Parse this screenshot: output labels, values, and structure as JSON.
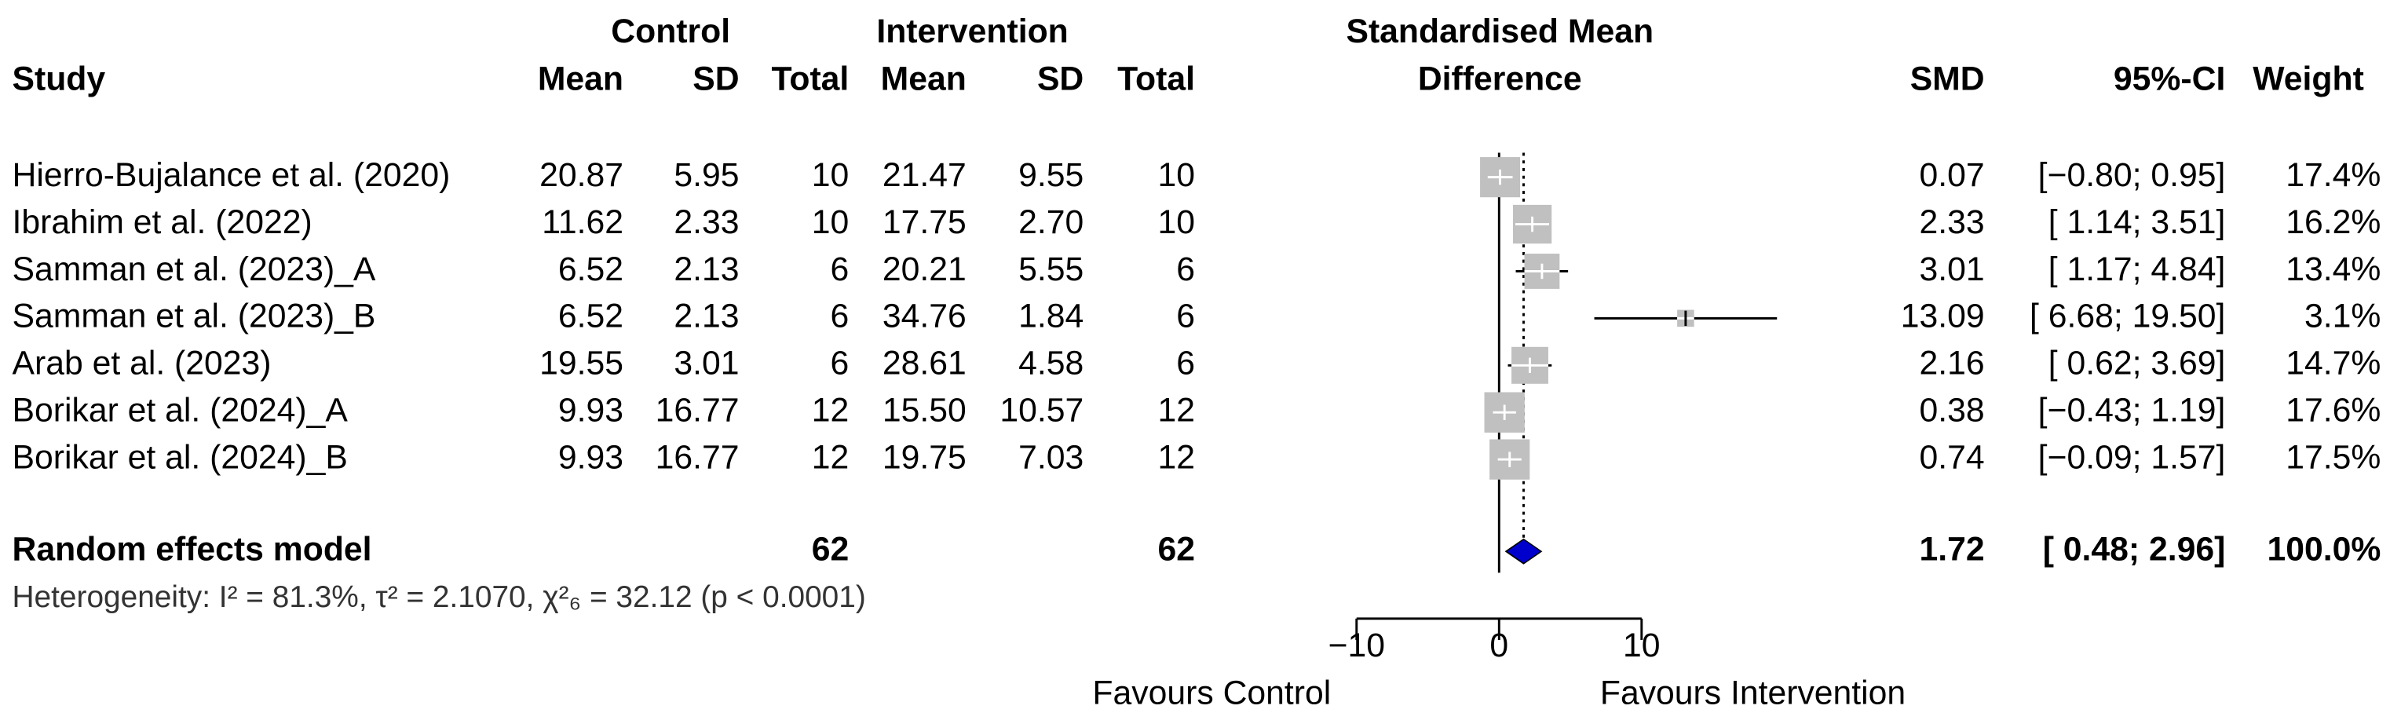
{
  "chart_data": {
    "type": "forest",
    "title_lines": [
      "Standardised Mean",
      "Difference"
    ],
    "columns": {
      "study": "Study",
      "control": "Control",
      "intervention": "Intervention",
      "mean": "Mean",
      "sd": "SD",
      "total": "Total",
      "smd": "SMD",
      "ci": "95%-CI",
      "weight": "Weight"
    },
    "rows": [
      [
        "Hierro-Bujalance et al. (2020)",
        "20.87",
        "5.95",
        "10",
        "21.47",
        "9.55",
        "10"
      ],
      [
        "Ibrahim et al. (2022)",
        "11.62",
        "2.33",
        "10",
        "17.75",
        "2.70",
        "10"
      ],
      [
        "Samman et al. (2023)_A",
        "6.52",
        "2.13",
        "6",
        "20.21",
        "5.55",
        "6"
      ],
      [
        "Samman et al. (2023)_B",
        "6.52",
        "2.13",
        "6",
        "34.76",
        "1.84",
        "6"
      ],
      [
        "Arab et al. (2023)",
        "19.55",
        "3.01",
        "6",
        "28.61",
        "4.58",
        "6"
      ],
      [
        "Borikar et al. (2024)_A",
        "9.93",
        "16.77",
        "12",
        "15.50",
        "10.57",
        "12"
      ],
      [
        "Borikar et al. (2024)_B",
        "9.93",
        "16.77",
        "12",
        "19.75",
        "7.03",
        "12"
      ]
    ],
    "values": [
      0.07,
      2.33,
      3.01,
      13.09,
      2.16,
      0.38,
      0.74
    ],
    "ci_lower": [
      -0.8,
      1.14,
      1.17,
      6.68,
      0.62,
      -0.43,
      -0.09
    ],
    "ci_upper": [
      0.95,
      3.51,
      4.84,
      19.5,
      3.69,
      1.19,
      1.57
    ],
    "ci_labels": [
      "[−0.80; 0.95]",
      "[ 1.14; 3.51]",
      "[ 1.17; 4.84]",
      "[ 6.68; 19.50]",
      "[ 0.62; 3.69]",
      "[−0.43; 1.19]",
      "[−0.09; 1.57]"
    ],
    "weights": [
      17.4,
      16.2,
      13.4,
      3.1,
      14.7,
      17.6,
      17.5
    ],
    "weight_labels": [
      "17.4%",
      "16.2%",
      "13.4%",
      "3.1%",
      "14.7%",
      "17.6%",
      "17.5%"
    ],
    "summary": {
      "label": "Random effects model",
      "control_total": "62",
      "intervention_total": "62",
      "value": 1.72,
      "ci_lower": 0.48,
      "ci_upper": 2.96,
      "ci_label": "[ 0.48; 2.96]",
      "weight_label": "100.0%",
      "color": "#0000cc"
    },
    "heterogeneity": "Heterogeneity: I² = 81.3%, τ² = 2.1070, χ²₆ = 32.12 (p < 0.0001)",
    "xlim": [
      -10,
      10
    ],
    "xticks": [
      {
        "value": -10,
        "label": "−10"
      },
      0,
      10
    ],
    "xlabel_left": "Favours Control",
    "xlabel_right": "Favours Intervention",
    "square_color": "#c0c0c0"
  }
}
